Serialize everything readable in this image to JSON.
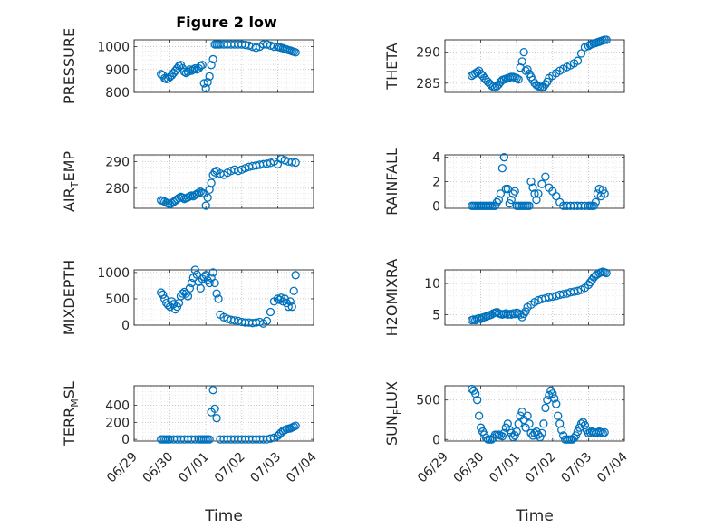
{
  "figure": {
    "title": "Figure 2 low",
    "marker_color": "#0072BD",
    "axes_color": "#262626",
    "grid": "dotted"
  },
  "chart_data": [
    {
      "id": "pressure",
      "type": "scatter",
      "title": "Figure 2 low",
      "ylabel": "PRESSURE",
      "ylabel_main": "PRESSURE",
      "ylabel_sub": "",
      "ylabel_tail": "",
      "xlabel": "",
      "xlim": [
        0,
        5
      ],
      "ylim": [
        800,
        1030
      ],
      "yticks": [
        800,
        900,
        1000
      ],
      "ytick_labels": [
        "800",
        "900",
        "1000"
      ],
      "x": [
        0.75,
        0.8,
        0.85,
        0.9,
        0.95,
        1.0,
        1.05,
        1.1,
        1.15,
        1.2,
        1.25,
        1.3,
        1.35,
        1.4,
        1.45,
        1.5,
        1.55,
        1.6,
        1.65,
        1.7,
        1.75,
        1.8,
        1.85,
        1.9,
        1.95,
        2.0,
        2.05,
        2.1,
        2.15,
        2.2,
        2.25,
        2.3,
        2.35,
        2.4,
        2.5,
        2.6,
        2.7,
        2.8,
        2.9,
        3.0,
        3.1,
        3.2,
        3.3,
        3.4,
        3.5,
        3.6,
        3.7,
        3.8,
        3.9,
        4.0,
        4.05,
        4.1,
        4.15,
        4.2,
        4.25,
        4.3,
        4.35,
        4.4,
        4.45,
        4.5
      ],
      "y": [
        880,
        875,
        862,
        858,
        860,
        868,
        875,
        885,
        895,
        905,
        915,
        920,
        905,
        890,
        885,
        890,
        900,
        895,
        900,
        905,
        900,
        905,
        915,
        920,
        840,
        818,
        845,
        870,
        920,
        945,
        1010,
        1010,
        1010,
        1010,
        1010,
        1010,
        1010,
        1010,
        1010,
        1010,
        1008,
        1005,
        1000,
        995,
        1000,
        1010,
        1010,
        1005,
        1000,
        1000,
        998,
        995,
        993,
        990,
        988,
        985,
        983,
        980,
        978,
        975
      ]
    },
    {
      "id": "theta",
      "type": "scatter",
      "ylabel": "THETA",
      "ylabel_main": "THETA",
      "ylabel_sub": "",
      "ylabel_tail": "",
      "xlabel": "",
      "xlim": [
        0,
        5
      ],
      "ylim": [
        283.5,
        292
      ],
      "yticks": [
        285,
        290
      ],
      "ytick_labels": [
        "285",
        "290"
      ],
      "x": [
        0.75,
        0.8,
        0.85,
        0.9,
        0.95,
        1.0,
        1.05,
        1.1,
        1.15,
        1.2,
        1.25,
        1.3,
        1.35,
        1.4,
        1.45,
        1.5,
        1.55,
        1.6,
        1.65,
        1.7,
        1.75,
        1.8,
        1.85,
        1.9,
        1.95,
        2.0,
        2.05,
        2.1,
        2.15,
        2.2,
        2.25,
        2.3,
        2.35,
        2.4,
        2.45,
        2.5,
        2.55,
        2.6,
        2.65,
        2.7,
        2.75,
        2.8,
        2.85,
        2.9,
        3.0,
        3.1,
        3.2,
        3.3,
        3.4,
        3.5,
        3.6,
        3.7,
        3.8,
        3.9,
        4.0,
        4.05,
        4.1,
        4.15,
        4.2,
        4.25,
        4.3,
        4.35,
        4.4,
        4.45,
        4.5
      ],
      "y": [
        286.2,
        286.4,
        286.6,
        286.8,
        287.0,
        286.5,
        286.2,
        285.8,
        285.5,
        285.2,
        284.9,
        284.6,
        284.4,
        284.3,
        284.5,
        284.8,
        285.2,
        285.5,
        285.6,
        285.7,
        285.8,
        285.9,
        286.0,
        286.0,
        285.9,
        285.8,
        285.6,
        287.5,
        288.5,
        290.0,
        287.0,
        287.2,
        286.5,
        286.0,
        285.5,
        285.0,
        284.7,
        284.5,
        284.4,
        284.3,
        284.4,
        284.8,
        285.2,
        285.8,
        286.2,
        286.6,
        287.0,
        287.3,
        287.6,
        287.9,
        288.2,
        288.6,
        289.8,
        290.8,
        291.0,
        291.2,
        291.3,
        291.4,
        291.5,
        291.6,
        291.7,
        291.8,
        291.9,
        292.0,
        292.0
      ]
    },
    {
      "id": "air_temp",
      "type": "scatter",
      "ylabel": "AIR_TEMP",
      "ylabel_main": "AIR",
      "ylabel_sub": "T",
      "ylabel_tail": "EMP",
      "xlabel": "",
      "xlim": [
        0,
        5
      ],
      "ylim": [
        272.5,
        292.5
      ],
      "yticks": [
        280,
        290
      ],
      "ytick_labels": [
        "280",
        "290"
      ],
      "x": [
        0.75,
        0.8,
        0.85,
        0.9,
        0.95,
        1.0,
        1.05,
        1.1,
        1.15,
        1.2,
        1.25,
        1.3,
        1.35,
        1.4,
        1.45,
        1.5,
        1.55,
        1.6,
        1.65,
        1.7,
        1.75,
        1.8,
        1.85,
        1.9,
        1.95,
        2.0,
        2.05,
        2.1,
        2.15,
        2.2,
        2.25,
        2.3,
        2.4,
        2.5,
        2.6,
        2.7,
        2.8,
        2.9,
        3.0,
        3.1,
        3.2,
        3.3,
        3.4,
        3.5,
        3.6,
        3.7,
        3.8,
        3.9,
        4.0,
        4.1,
        4.2,
        4.3,
        4.4,
        4.5
      ],
      "y": [
        275.5,
        275.3,
        275.0,
        274.6,
        274.3,
        274.0,
        274.4,
        274.9,
        275.4,
        275.9,
        276.4,
        276.8,
        276.5,
        276.0,
        276.3,
        276.6,
        277.0,
        277.3,
        277.0,
        277.5,
        277.9,
        278.3,
        278.7,
        278.2,
        278.0,
        273.5,
        276.5,
        279.5,
        282.0,
        285.0,
        286.0,
        286.5,
        285.5,
        285.0,
        285.8,
        286.5,
        287.0,
        286.5,
        287.0,
        287.5,
        288.0,
        288.3,
        288.5,
        288.8,
        289.0,
        289.2,
        289.5,
        290.0,
        289.0,
        291.0,
        290.5,
        290.0,
        289.8,
        289.6
      ]
    },
    {
      "id": "rainfall",
      "type": "scatter",
      "ylabel": "RAINFALL",
      "ylabel_main": "RAINFALL",
      "ylabel_sub": "",
      "ylabel_tail": "",
      "xlabel": "",
      "xlim": [
        0,
        5
      ],
      "ylim": [
        -0.2,
        4.2
      ],
      "yticks": [
        0,
        2,
        4
      ],
      "ytick_labels": [
        "0",
        "2",
        "4"
      ],
      "x": [
        0.75,
        0.8,
        0.85,
        0.9,
        0.95,
        1.0,
        1.05,
        1.1,
        1.15,
        1.2,
        1.25,
        1.3,
        1.35,
        1.4,
        1.45,
        1.5,
        1.55,
        1.6,
        1.65,
        1.7,
        1.75,
        1.8,
        1.85,
        1.9,
        1.95,
        2.0,
        2.05,
        2.1,
        2.15,
        2.2,
        2.25,
        2.3,
        2.35,
        2.4,
        2.45,
        2.5,
        2.55,
        2.6,
        2.7,
        2.8,
        2.9,
        3.0,
        3.1,
        3.2,
        3.3,
        3.4,
        3.5,
        3.6,
        3.7,
        3.8,
        3.9,
        4.0,
        4.05,
        4.1,
        4.15,
        4.2,
        4.25,
        4.3,
        4.35,
        4.4,
        4.45
      ],
      "y": [
        0,
        0,
        0,
        0,
        0,
        0,
        0,
        0,
        0,
        0,
        0,
        0,
        0,
        0,
        0.3,
        0.5,
        1.0,
        3.1,
        4.0,
        1.4,
        1.4,
        0.2,
        0.5,
        1.0,
        1.2,
        0,
        0,
        0,
        0,
        0,
        0,
        0,
        0,
        2.0,
        1.5,
        1.0,
        0.5,
        1.0,
        1.8,
        2.4,
        1.5,
        1.2,
        0.8,
        0.3,
        0,
        0,
        0,
        0,
        0,
        0,
        0,
        0,
        0,
        0,
        0,
        0.3,
        1.0,
        1.4,
        0.8,
        1.3,
        1.0
      ]
    },
    {
      "id": "mixdepth",
      "type": "scatter",
      "ylabel": "MIXDEPTH",
      "ylabel_main": "MIXDEPTH",
      "ylabel_sub": "",
      "ylabel_tail": "",
      "xlabel": "",
      "xlim": [
        0,
        5
      ],
      "ylim": [
        0,
        1050
      ],
      "yticks": [
        0,
        500,
        1000
      ],
      "ytick_labels": [
        "0",
        "500",
        "1000"
      ],
      "x": [
        0.75,
        0.8,
        0.85,
        0.9,
        0.95,
        1.0,
        1.05,
        1.1,
        1.15,
        1.2,
        1.25,
        1.3,
        1.35,
        1.4,
        1.45,
        1.5,
        1.55,
        1.6,
        1.65,
        1.7,
        1.75,
        1.8,
        1.85,
        1.9,
        1.95,
        2.0,
        2.05,
        2.1,
        2.15,
        2.2,
        2.25,
        2.3,
        2.35,
        2.4,
        2.5,
        2.6,
        2.7,
        2.8,
        2.9,
        3.0,
        3.1,
        3.2,
        3.3,
        3.4,
        3.5,
        3.6,
        3.7,
        3.8,
        3.9,
        4.0,
        4.05,
        4.1,
        4.15,
        4.2,
        4.25,
        4.3,
        4.35,
        4.4,
        4.45,
        4.5
      ],
      "y": [
        620,
        580,
        500,
        420,
        380,
        350,
        450,
        400,
        300,
        350,
        420,
        550,
        600,
        630,
        600,
        550,
        700,
        800,
        900,
        1050,
        960,
        820,
        700,
        880,
        920,
        950,
        850,
        800,
        900,
        1000,
        800,
        600,
        500,
        200,
        150,
        120,
        100,
        90,
        80,
        60,
        50,
        50,
        40,
        50,
        60,
        30,
        80,
        250,
        450,
        500,
        480,
        520,
        450,
        500,
        420,
        350,
        450,
        350,
        650,
        950
      ]
    },
    {
      "id": "h2omixra",
      "type": "scatter",
      "ylabel": "H2OMIXRA",
      "ylabel_main": "H2OMIXRA",
      "ylabel_sub": "",
      "ylabel_tail": "",
      "xlabel": "",
      "xlim": [
        0,
        5
      ],
      "ylim": [
        3.3,
        12.2
      ],
      "yticks": [
        5,
        10
      ],
      "ytick_labels": [
        "5",
        "10"
      ],
      "x": [
        0.75,
        0.8,
        0.85,
        0.9,
        0.95,
        1.0,
        1.05,
        1.1,
        1.15,
        1.2,
        1.25,
        1.3,
        1.35,
        1.4,
        1.45,
        1.5,
        1.55,
        1.6,
        1.65,
        1.7,
        1.75,
        1.8,
        1.85,
        1.9,
        1.95,
        2.0,
        2.05,
        2.1,
        2.15,
        2.2,
        2.25,
        2.3,
        2.4,
        2.5,
        2.6,
        2.7,
        2.8,
        2.9,
        3.0,
        3.1,
        3.2,
        3.3,
        3.4,
        3.5,
        3.6,
        3.7,
        3.8,
        3.9,
        4.0,
        4.05,
        4.1,
        4.15,
        4.2,
        4.25,
        4.3,
        4.35,
        4.4,
        4.45,
        4.5
      ],
      "y": [
        4.1,
        4.2,
        4.1,
        4.3,
        4.4,
        4.3,
        4.5,
        4.6,
        4.7,
        4.8,
        4.9,
        5.0,
        5.2,
        5.3,
        5.4,
        5.2,
        5.1,
        5.0,
        5.1,
        5.2,
        5.0,
        5.1,
        5.0,
        5.2,
        5.1,
        5.3,
        5.2,
        5.0,
        4.6,
        5.1,
        5.5,
        6.2,
        6.6,
        7.0,
        7.3,
        7.5,
        7.6,
        7.8,
        7.9,
        8.0,
        8.2,
        8.3,
        8.4,
        8.6,
        8.7,
        8.8,
        9.0,
        9.3,
        9.8,
        10.2,
        10.6,
        11.0,
        11.3,
        11.5,
        11.7,
        11.8,
        11.9,
        11.8,
        11.7
      ]
    },
    {
      "id": "terr_msl",
      "type": "scatter",
      "ylabel": "TERR_MSL",
      "ylabel_main": "TERR",
      "ylabel_sub": "M",
      "ylabel_tail": "SL",
      "xlabel": "Time",
      "xlim": [
        0,
        5
      ],
      "ylim": [
        -20,
        630
      ],
      "yticks": [
        0,
        200,
        400
      ],
      "ytick_labels": [
        "0",
        "200",
        "400"
      ],
      "xticks": [
        0,
        1,
        2,
        3,
        4,
        5
      ],
      "xtick_labels": [
        "06/29",
        "06/30",
        "07/01",
        "07/02",
        "07/03",
        "07/04"
      ],
      "x": [
        0.75,
        0.8,
        0.85,
        0.9,
        0.95,
        1.0,
        1.1,
        1.2,
        1.3,
        1.4,
        1.5,
        1.6,
        1.7,
        1.8,
        1.85,
        1.9,
        1.95,
        2.0,
        2.05,
        2.1,
        2.15,
        2.2,
        2.25,
        2.3,
        2.4,
        2.5,
        2.6,
        2.7,
        2.8,
        2.9,
        3.0,
        3.1,
        3.2,
        3.3,
        3.4,
        3.5,
        3.6,
        3.7,
        3.8,
        3.9,
        4.0,
        4.05,
        4.1,
        4.15,
        4.2,
        4.25,
        4.3,
        4.35,
        4.4,
        4.45,
        4.5
      ],
      "y": [
        0,
        0,
        0,
        0,
        0,
        0,
        0,
        0,
        0,
        0,
        0,
        0,
        0,
        0,
        0,
        0,
        0,
        0,
        0,
        0,
        320,
        580,
        360,
        250,
        0,
        0,
        0,
        0,
        0,
        0,
        0,
        0,
        0,
        0,
        0,
        0,
        0,
        0,
        10,
        20,
        40,
        60,
        80,
        100,
        110,
        120,
        125,
        130,
        140,
        150,
        160
      ]
    },
    {
      "id": "sun_flux",
      "type": "scatter",
      "ylabel": "SUN_FLUX",
      "ylabel_main": "SUN",
      "ylabel_sub": "F",
      "ylabel_tail": "LUX",
      "xlabel": "Time",
      "xlim": [
        0,
        5
      ],
      "ylim": [
        -20,
        680
      ],
      "yticks": [
        0,
        500
      ],
      "ytick_labels": [
        "0",
        "500"
      ],
      "xticks": [
        0,
        1,
        2,
        3,
        4,
        5
      ],
      "xtick_labels": [
        "06/29",
        "06/30",
        "07/01",
        "07/02",
        "07/03",
        "07/04"
      ],
      "x": [
        0.75,
        0.8,
        0.85,
        0.9,
        0.95,
        1.0,
        1.05,
        1.1,
        1.15,
        1.2,
        1.25,
        1.3,
        1.35,
        1.4,
        1.45,
        1.5,
        1.55,
        1.6,
        1.65,
        1.7,
        1.75,
        1.8,
        1.85,
        1.9,
        1.95,
        2.0,
        2.05,
        2.1,
        2.15,
        2.2,
        2.25,
        2.3,
        2.35,
        2.4,
        2.45,
        2.5,
        2.55,
        2.6,
        2.65,
        2.7,
        2.75,
        2.8,
        2.85,
        2.9,
        2.95,
        3.0,
        3.05,
        3.1,
        3.15,
        3.2,
        3.25,
        3.3,
        3.35,
        3.4,
        3.45,
        3.5,
        3.55,
        3.6,
        3.65,
        3.7,
        3.75,
        3.8,
        3.85,
        3.9,
        3.95,
        4.0,
        4.05,
        4.1,
        4.15,
        4.2,
        4.25,
        4.3,
        4.35,
        4.4,
        4.45
      ],
      "y": [
        640,
        620,
        580,
        500,
        300,
        150,
        100,
        60,
        20,
        0,
        0,
        0,
        20,
        60,
        60,
        60,
        50,
        40,
        80,
        150,
        200,
        120,
        80,
        30,
        50,
        100,
        200,
        300,
        350,
        250,
        150,
        300,
        200,
        80,
        50,
        80,
        100,
        60,
        30,
        80,
        200,
        400,
        500,
        560,
        620,
        580,
        520,
        450,
        300,
        200,
        120,
        50,
        0,
        0,
        0,
        0,
        0,
        20,
        50,
        100,
        150,
        200,
        220,
        180,
        120,
        80,
        90,
        100,
        90,
        80,
        90,
        100,
        90,
        80,
        90
      ]
    }
  ]
}
